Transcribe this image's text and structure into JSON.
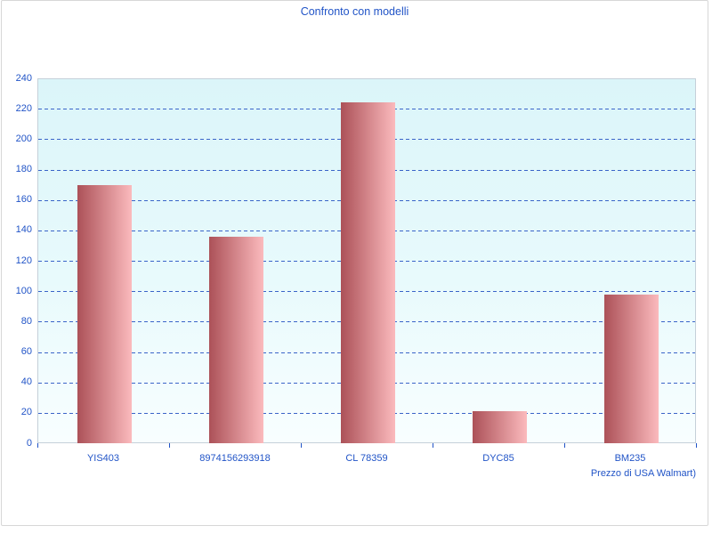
{
  "chart_data": {
    "type": "bar",
    "title": "Confronto con modelli",
    "categories": [
      "YIS403",
      "8974156293918",
      "CL 78359",
      "DYC85",
      "BM235"
    ],
    "values": [
      170,
      136,
      224,
      21,
      98
    ],
    "xlabel": "Prezzo di USA Walmart)",
    "ylabel": "",
    "ylim": [
      0,
      240
    ],
    "yticks": [
      0,
      20,
      40,
      60,
      80,
      100,
      120,
      140,
      160,
      180,
      200,
      220,
      240
    ],
    "grid": "horizontal-dashed",
    "legend": "none",
    "colors": {
      "text": "#2154c7",
      "gridline": "#3a64c8",
      "bar_gradient_left": "#ac5158",
      "bar_gradient_right": "#fbbabd",
      "plot_bg_top": "#dbf5f9",
      "plot_bg_bottom": "#f8feff",
      "plot_border": "#c5d0d9",
      "frame_border": "#d7d7d7"
    }
  }
}
